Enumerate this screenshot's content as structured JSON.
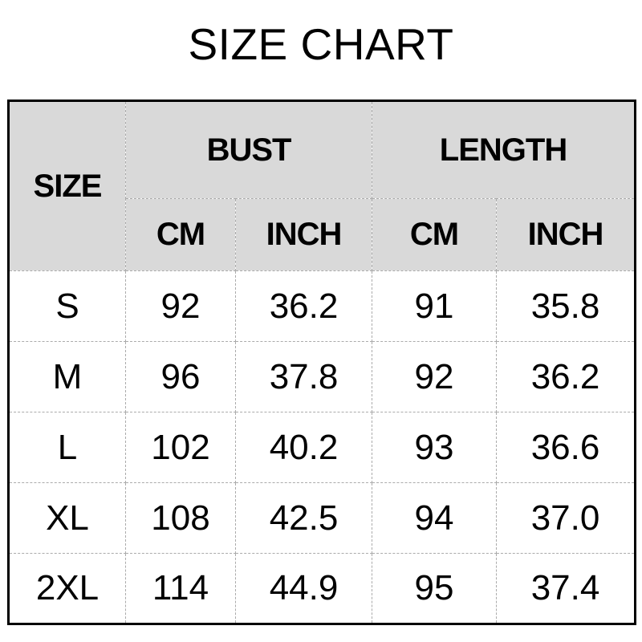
{
  "title": "SIZE CHART",
  "chart_data": {
    "type": "table",
    "title": "SIZE CHART",
    "corner_header": "SIZE",
    "column_groups": [
      {
        "label": "BUST",
        "columns": [
          "CM",
          "INCH"
        ]
      },
      {
        "label": "LENGTH",
        "columns": [
          "CM",
          "INCH"
        ]
      }
    ],
    "unit_headers": [
      "CM",
      "INCH",
      "CM",
      "INCH"
    ],
    "rows": [
      {
        "size": "S",
        "values": [
          "92",
          "36.2",
          "91",
          "35.8"
        ]
      },
      {
        "size": "M",
        "values": [
          "96",
          "37.8",
          "92",
          "36.2"
        ]
      },
      {
        "size": "L",
        "values": [
          "102",
          "40.2",
          "93",
          "36.6"
        ]
      },
      {
        "size": "XL",
        "values": [
          "108",
          "42.5",
          "94",
          "37.0"
        ]
      },
      {
        "size": "2XL",
        "values": [
          "114",
          "44.9",
          "95",
          "37.4"
        ]
      }
    ]
  },
  "colors": {
    "background": "#ffffff",
    "header_bg": "#d9d9d9",
    "table_border": "#000000",
    "grid_line": "#ababab",
    "text": "#000000"
  }
}
